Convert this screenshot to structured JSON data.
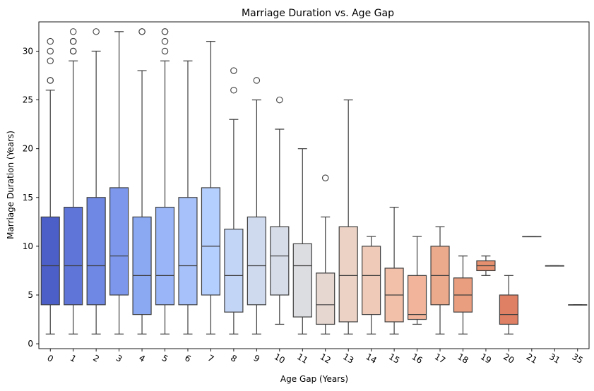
{
  "chart_data": {
    "type": "box",
    "title": "Marriage Duration vs. Age Gap",
    "xlabel": "Age Gap (Years)",
    "ylabel": "Marriage Duration (Years)",
    "ylim": [
      -0.5,
      33
    ],
    "yticks": [
      0,
      5,
      10,
      15,
      20,
      25,
      30
    ],
    "grid": false,
    "legend": "none",
    "palette": "coolwarm",
    "categories": [
      "0",
      "1",
      "2",
      "3",
      "4",
      "5",
      "6",
      "7",
      "8",
      "9",
      "10",
      "11",
      "12",
      "13",
      "14",
      "15",
      "16",
      "17",
      "18",
      "19",
      "20",
      "21",
      "31",
      "35"
    ],
    "boxes": [
      {
        "q1": 4,
        "median": 8,
        "q3": 13,
        "whislo": 1,
        "whishi": 26,
        "fliers": [
          27,
          27,
          29,
          30,
          31
        ]
      },
      {
        "q1": 4,
        "median": 8,
        "q3": 14,
        "whislo": 1,
        "whishi": 29,
        "fliers": [
          30,
          30,
          31,
          31,
          32
        ]
      },
      {
        "q1": 4,
        "median": 8,
        "q3": 15,
        "whislo": 1,
        "whishi": 30,
        "fliers": [
          32
        ]
      },
      {
        "q1": 5,
        "median": 9,
        "q3": 16,
        "whislo": 1,
        "whishi": 32,
        "fliers": []
      },
      {
        "q1": 3,
        "median": 7,
        "q3": 13,
        "whislo": 1,
        "whishi": 28,
        "fliers": [
          32,
          32
        ]
      },
      {
        "q1": 4,
        "median": 7,
        "q3": 14,
        "whislo": 1,
        "whishi": 29,
        "fliers": [
          30,
          31,
          32,
          32
        ]
      },
      {
        "q1": 4,
        "median": 8,
        "q3": 15,
        "whislo": 1,
        "whishi": 29,
        "fliers": []
      },
      {
        "q1": 5,
        "median": 10,
        "q3": 16,
        "whislo": 1,
        "whishi": 31,
        "fliers": []
      },
      {
        "q1": 3.25,
        "median": 7,
        "q3": 11.75,
        "whislo": 1,
        "whishi": 23,
        "fliers": [
          26,
          28
        ]
      },
      {
        "q1": 4,
        "median": 8,
        "q3": 13,
        "whislo": 1,
        "whishi": 25,
        "fliers": [
          27
        ]
      },
      {
        "q1": 5,
        "median": 9,
        "q3": 12,
        "whislo": 2,
        "whishi": 22,
        "fliers": [
          25
        ]
      },
      {
        "q1": 2.75,
        "median": 8,
        "q3": 10.25,
        "whislo": 1,
        "whishi": 20,
        "fliers": []
      },
      {
        "q1": 2,
        "median": 4,
        "q3": 7.25,
        "whislo": 1,
        "whishi": 13,
        "fliers": [
          17
        ]
      },
      {
        "q1": 2.25,
        "median": 7,
        "q3": 12,
        "whislo": 1,
        "whishi": 25,
        "fliers": []
      },
      {
        "q1": 3,
        "median": 7,
        "q3": 10,
        "whislo": 1,
        "whishi": 11,
        "fliers": []
      },
      {
        "q1": 2.25,
        "median": 5,
        "q3": 7.75,
        "whislo": 1,
        "whishi": 14,
        "fliers": []
      },
      {
        "q1": 2.5,
        "median": 3,
        "q3": 7,
        "whislo": 2,
        "whishi": 11,
        "fliers": []
      },
      {
        "q1": 4,
        "median": 7,
        "q3": 10,
        "whislo": 1,
        "whishi": 12,
        "fliers": []
      },
      {
        "q1": 3.25,
        "median": 5,
        "q3": 6.75,
        "whislo": 1,
        "whishi": 9,
        "fliers": []
      },
      {
        "q1": 7.5,
        "median": 8,
        "q3": 8.5,
        "whislo": 7,
        "whishi": 9,
        "fliers": []
      },
      {
        "q1": 2,
        "median": 3,
        "q3": 5,
        "whislo": 1,
        "whishi": 7,
        "fliers": []
      },
      {
        "q1": 11,
        "median": 11,
        "q3": 11,
        "whislo": 11,
        "whishi": 11,
        "fliers": []
      },
      {
        "q1": 8,
        "median": 8,
        "q3": 8,
        "whislo": 8,
        "whishi": 8,
        "fliers": []
      },
      {
        "q1": 4,
        "median": 4,
        "q3": 4,
        "whislo": 4,
        "whishi": 4,
        "fliers": []
      }
    ],
    "colors": [
      "#4c5fc9",
      "#5f76d8",
      "#6e88e4",
      "#7c97ec",
      "#8ba8f3",
      "#9ab6f8",
      "#a7c2fb",
      "#b4cefd",
      "#c3d5f6",
      "#cfdaee",
      "#d7dde8",
      "#dcdde0",
      "#e6d7d1",
      "#ecd2c5",
      "#f0cab8",
      "#f2c0a9",
      "#f2b49a",
      "#ecaa8c",
      "#e99e7f",
      "#e6906f",
      "#df7f64",
      "#d46f59",
      "#c85e4f",
      "#b94a46"
    ]
  }
}
